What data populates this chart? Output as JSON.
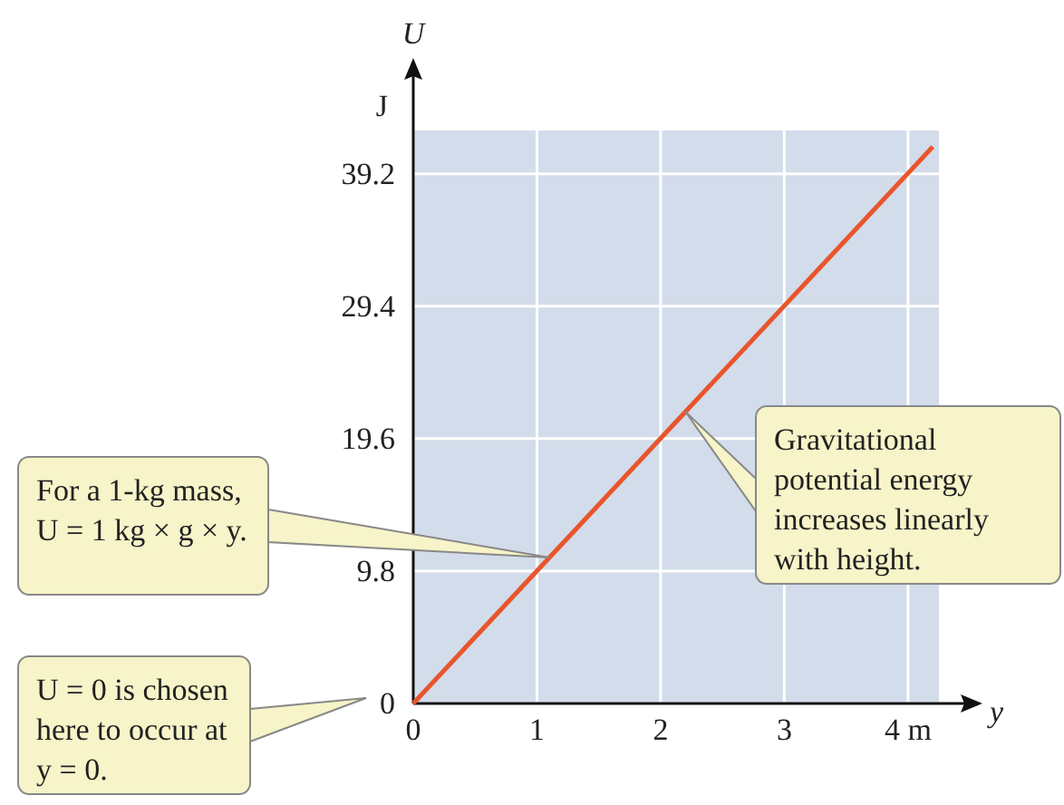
{
  "chart_data": {
    "type": "line",
    "xlabel": "y",
    "ylabel": "U",
    "x": [
      0,
      4.2
    ],
    "series": [
      {
        "color": "#e8552b",
        "values": [
          0,
          41.2
        ]
      }
    ],
    "xlim": [
      0,
      4.25
    ],
    "xticks": [
      0,
      1,
      2,
      3,
      {
        "value": 4,
        "label": "4 m"
      }
    ],
    "ylim": [
      0,
      42.4
    ],
    "yticks": [
      0,
      9.8,
      19.6,
      29.4,
      39.2
    ],
    "grid": true,
    "marker": "none",
    "line_style": "solid",
    "annotations": [
      "J",
      {
        "text": "For a 1-kg mass, U = 1 kg × g × y.",
        "x": 1.1,
        "y": 10.8
      },
      {
        "text": "Gravitational potential energy increases linearly with height.",
        "x": 2.2,
        "y": 21.6
      },
      "U = 0 is chosen here to occur at y = 0."
    ]
  }
}
